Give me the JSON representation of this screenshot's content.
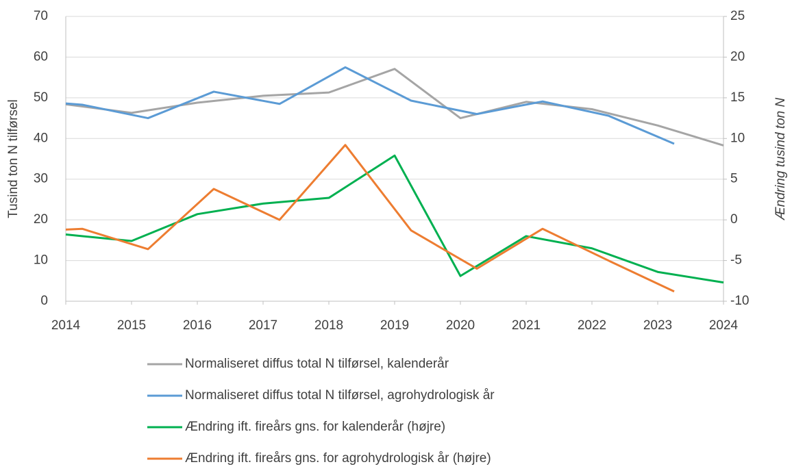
{
  "chart_data": {
    "type": "line",
    "ylabel": "Tusind ton N tilførsel",
    "y2label": "Ændring tusind ton N",
    "xlim": [
      2014,
      2024
    ],
    "xticks": [
      2014,
      2015,
      2016,
      2017,
      2018,
      2019,
      2020,
      2021,
      2022,
      2023,
      2024
    ],
    "ylim": [
      0,
      70
    ],
    "yticks": [
      0,
      10,
      20,
      30,
      40,
      50,
      60,
      70
    ],
    "y2lim": [
      -10,
      25
    ],
    "y2ticks": [
      -10,
      -5,
      0,
      5,
      10,
      15,
      20,
      25
    ],
    "grid": true,
    "legend": "bottom",
    "series": [
      {
        "name": "Normaliseret diffus total N tilførsel, kalenderår",
        "color": "#A5A5A5",
        "x": [
          2014,
          2015,
          2016,
          2017,
          2018,
          2019,
          2020,
          2021,
          2022,
          2023,
          2024
        ],
        "values": [
          48.4,
          46.3,
          48.8,
          50.5,
          51.3,
          57.1,
          45.0,
          49.0,
          47.2,
          43.2,
          38.3
        ]
      },
      {
        "name": "Normaliseret diffus total N tilførsel, agrohydrologisk år",
        "color": "#5B9BD5",
        "x": [
          2014,
          2014.25,
          2015.25,
          2016.25,
          2017.25,
          2018.25,
          2019.25,
          2020.25,
          2021.25,
          2022.25,
          2023.25
        ],
        "values": [
          48.6,
          48.3,
          45.0,
          51.5,
          48.5,
          57.5,
          49.3,
          46.0,
          49.1,
          45.6,
          38.7
        ]
      },
      {
        "name": "Ændring ift. fireårs gns. for kalenderår (højre)",
        "color": "#00B050",
        "axis": "y2",
        "x": [
          2014,
          2015,
          2016,
          2017,
          2018,
          2019,
          2020,
          2021,
          2022,
          2023,
          2024
        ],
        "values": [
          -1.8,
          -2.6,
          0.7,
          2.0,
          2.7,
          7.9,
          -6.9,
          -2.0,
          -3.5,
          -6.4,
          -7.7
        ]
      },
      {
        "name": "Ændring ift. fireårs gns. for agrohydrologisk år (højre)",
        "color": "#ED7D31",
        "axis": "y2",
        "x": [
          2014,
          2014.25,
          2015.25,
          2016.25,
          2017.25,
          2018.25,
          2019.25,
          2020.25,
          2021.25,
          2022.25,
          2023.25
        ],
        "values": [
          -1.2,
          -1.1,
          -3.6,
          3.8,
          0.0,
          9.2,
          -1.3,
          -6.0,
          -1.1,
          -5.0,
          -8.8
        ]
      }
    ]
  }
}
